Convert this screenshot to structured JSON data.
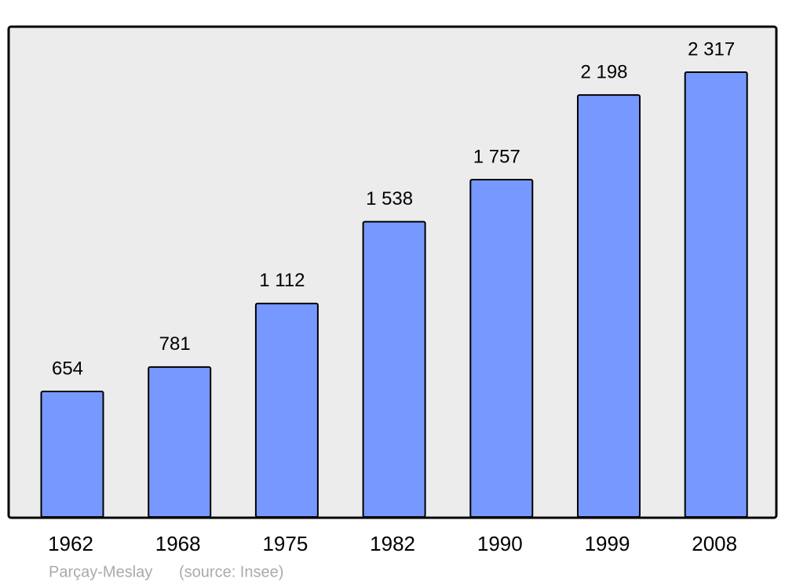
{
  "chart_data": {
    "type": "bar",
    "categories": [
      "1962",
      "1968",
      "1975",
      "1982",
      "1990",
      "1999",
      "2008"
    ],
    "values": [
      654,
      781,
      1112,
      1538,
      1757,
      2198,
      2317
    ],
    "value_labels": [
      "654",
      "781",
      "1 112",
      "1 538",
      "1 757",
      "2 198",
      "2 317"
    ],
    "color": "#7799ff",
    "caption": "Parçay-Meslay",
    "source": "(source: Insee)"
  }
}
